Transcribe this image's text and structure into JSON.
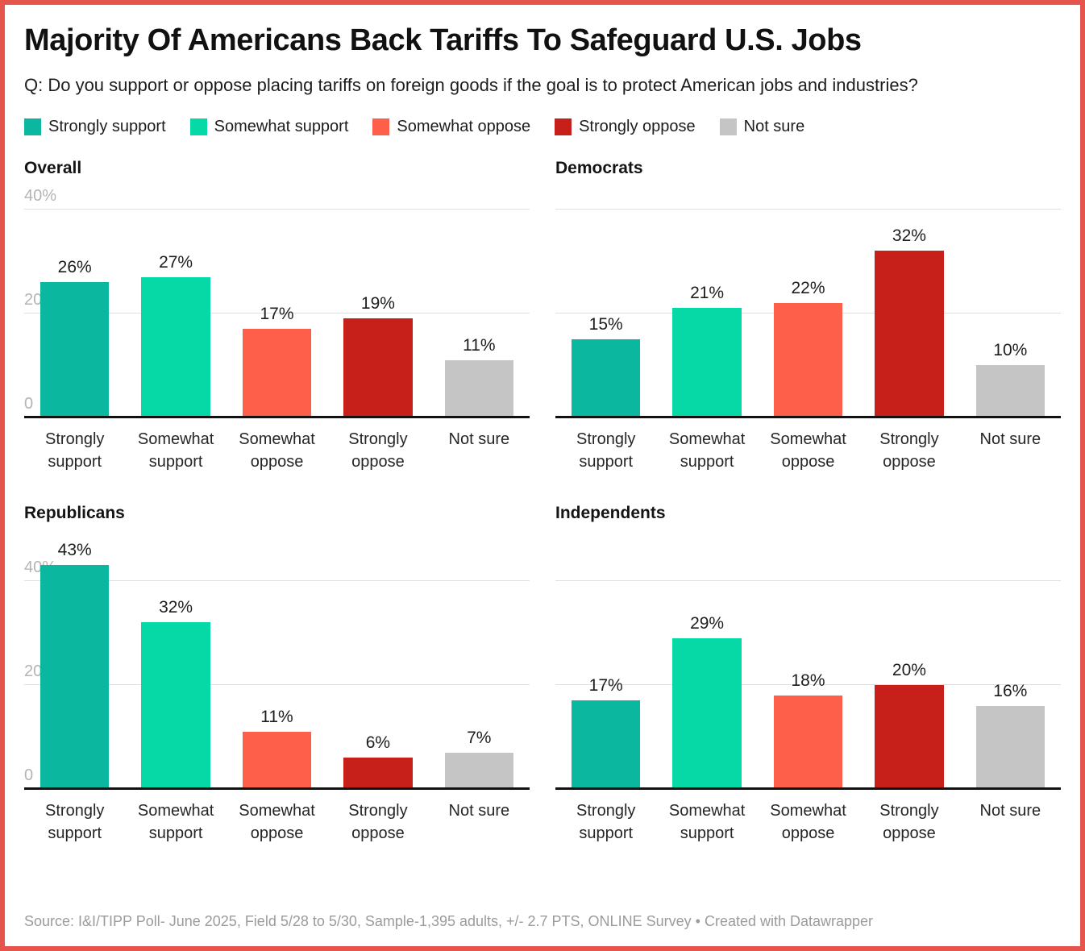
{
  "header": {
    "title": "Majority Of Americans Back Tariffs To Safeguard U.S. Jobs",
    "question": "Q: Do you support or oppose placing tariffs on foreign goods if the goal is to protect American jobs and industries?"
  },
  "legend": [
    {
      "label": "Strongly support",
      "color": "#0bb89f"
    },
    {
      "label": "Somewhat support",
      "color": "#06d9a5"
    },
    {
      "label": "Somewhat oppose",
      "color": "#fe5f4a"
    },
    {
      "label": "Strongly oppose",
      "color": "#c71f1a"
    },
    {
      "label": "Not sure",
      "color": "#c5c5c5"
    }
  ],
  "chart_data": {
    "type": "bar",
    "layout": "small-multiples 2x2 grid of grouped-category bar charts",
    "categories": [
      "Strongly support",
      "Somewhat support",
      "Somewhat oppose",
      "Strongly oppose",
      "Not sure"
    ],
    "category_label_lines": [
      "Strongly\nsupport",
      "Somewhat\nsupport",
      "Somewhat\noppose",
      "Strongly\noppose",
      "Not sure"
    ],
    "series": [
      {
        "name": "Overall",
        "values": [
          26,
          27,
          17,
          19,
          11
        ],
        "show_y_axis_labels": true
      },
      {
        "name": "Democrats",
        "values": [
          15,
          21,
          22,
          32,
          10
        ],
        "show_y_axis_labels": false
      },
      {
        "name": "Republicans",
        "values": [
          43,
          32,
          11,
          6,
          7
        ],
        "show_y_axis_labels": true
      },
      {
        "name": "Independents",
        "values": [
          17,
          29,
          18,
          20,
          16
        ],
        "show_y_axis_labels": false
      }
    ],
    "bar_colors": [
      "#0bb89f",
      "#06d9a5",
      "#fe5f4a",
      "#c71f1a",
      "#c5c5c5"
    ],
    "value_suffix": "%",
    "ylim": [
      0,
      45
    ],
    "yticks": [
      {
        "value": 0,
        "label": "0"
      },
      {
        "value": 20,
        "label": "20"
      },
      {
        "value": 40,
        "label": "40%"
      }
    ],
    "grid": "horizontal gridlines at 20 and 40, solid black baseline at 0",
    "legend_position": "top"
  },
  "footer": {
    "source": "Source: I&I/TIPP Poll- June 2025, Field 5/28 to 5/30, Sample-1,395 adults, +/- 2.7 PTS, ONLINE Survey",
    "separator": "•",
    "attribution": "Created with Datawrapper"
  },
  "frame": {
    "border_color": "#e5554b",
    "background": "#ffffff"
  }
}
